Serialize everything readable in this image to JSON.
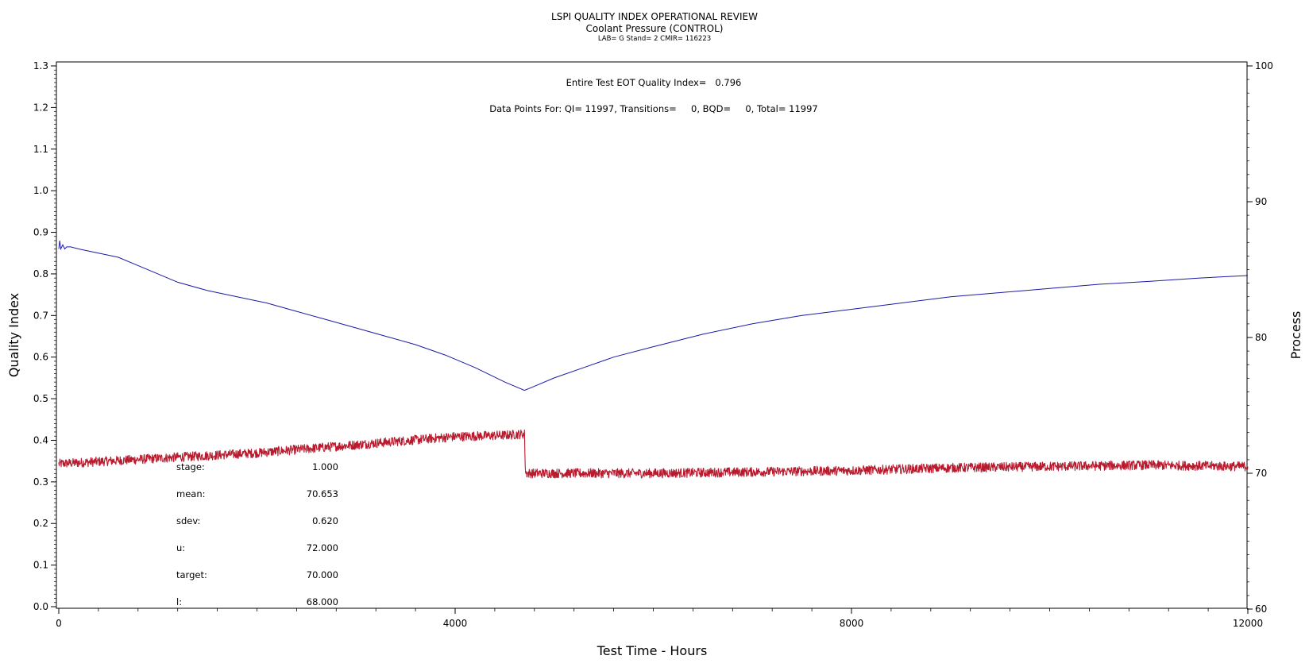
{
  "header": {
    "title": "LSPI QUALITY INDEX OPERATIONAL REVIEW",
    "subtitle": "Coolant Pressure (CONTROL)",
    "meta": "LAB= G Stand= 2 CMIR= 116223"
  },
  "chart_data": {
    "type": "line",
    "xlabel": "Test Time - Hours",
    "ylabel": "Quality Index",
    "y2label": "Process",
    "xlim": [
      0,
      12000
    ],
    "ylim": [
      0,
      1.3
    ],
    "y2lim": [
      60,
      100
    ],
    "x_ticks": [
      0,
      4000,
      8000,
      12000
    ],
    "y_ticks": [
      0.0,
      0.1,
      0.2,
      0.3,
      0.4,
      0.5,
      0.6,
      0.7,
      0.8,
      0.9,
      1.0,
      1.1,
      1.2,
      1.3
    ],
    "y2_ticks": [
      60,
      70,
      80,
      90,
      100
    ],
    "grid": false,
    "annotations": {
      "eot": "Entire Test EOT Quality Index=   0.796",
      "points": "Data Points For: QI= 11997, Transitions=     0, BQD=     0, Total= 11997"
    },
    "stats": [
      {
        "label": "stage:",
        "value": "1.000"
      },
      {
        "label": "mean:",
        "value": "70.653"
      },
      {
        "label": "sdev:",
        "value": "0.620"
      },
      {
        "label": "u:",
        "value": "72.000"
      },
      {
        "label": "target:",
        "value": "70.000"
      },
      {
        "label": "l:",
        "value": "68.000"
      }
    ],
    "series": [
      {
        "axis": "left",
        "color": "#1a1aa6",
        "x": [
          0,
          10,
          20,
          40,
          60,
          80,
          120,
          200,
          400,
          600,
          800,
          1000,
          1200,
          1500,
          1800,
          2100,
          2400,
          2700,
          3000,
          3300,
          3600,
          3900,
          4200,
          4500,
          4700,
          4800,
          5000,
          5300,
          5600,
          6000,
          6500,
          7000,
          7500,
          8000,
          8500,
          9000,
          9500,
          10000,
          10500,
          11000,
          11500,
          12000
        ],
        "y": [
          0.86,
          0.88,
          0.86,
          0.87,
          0.86,
          0.865,
          0.865,
          0.86,
          0.85,
          0.84,
          0.82,
          0.8,
          0.78,
          0.76,
          0.745,
          0.73,
          0.71,
          0.69,
          0.67,
          0.65,
          0.63,
          0.605,
          0.575,
          0.54,
          0.52,
          0.53,
          0.55,
          0.575,
          0.6,
          0.625,
          0.655,
          0.68,
          0.7,
          0.715,
          0.73,
          0.745,
          0.755,
          0.765,
          0.775,
          0.782,
          0.79,
          0.796
        ]
      },
      {
        "axis": "right",
        "color": "#b81a2e",
        "x": [
          0,
          500,
          1000,
          1500,
          2000,
          2500,
          3000,
          3500,
          4000,
          4500,
          4700,
          4710,
          5000,
          6000,
          7000,
          8000,
          9000,
          10000,
          11000,
          12000
        ],
        "y": [
          70.7,
          70.9,
          71.1,
          71.3,
          71.5,
          71.8,
          72.1,
          72.4,
          72.7,
          72.8,
          72.9,
          70.0,
          70.0,
          70.0,
          70.1,
          70.2,
          70.4,
          70.5,
          70.6,
          70.5
        ],
        "noise": 0.35
      }
    ]
  }
}
